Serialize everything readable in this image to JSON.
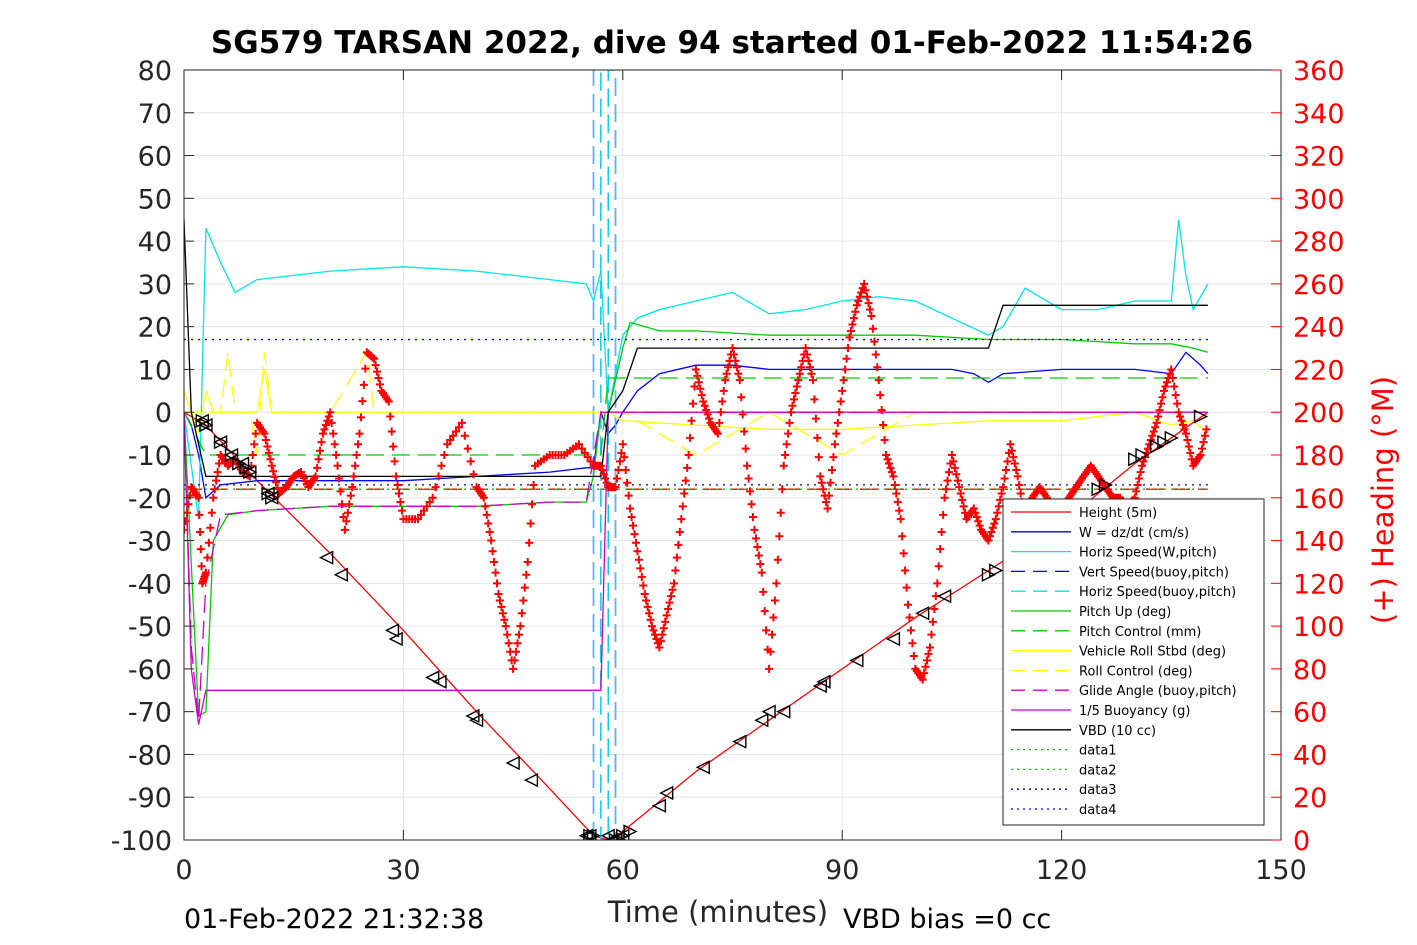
{
  "chart_data": {
    "type": "line",
    "title": "SG579 TARSAN 2022, dive 94 started 01-Feb-2022 11:54:26",
    "xlabel": "Time (minutes)",
    "ylabel": "",
    "y2label": "(+) Heading (°M)",
    "xlim": [
      0,
      150
    ],
    "ylim": [
      -100,
      80
    ],
    "y2lim": [
      0,
      360
    ],
    "xticks": [
      "0",
      "30",
      "60",
      "90",
      "120",
      "150"
    ],
    "yticks": [
      "80",
      "70",
      "60",
      "50",
      "40",
      "30",
      "20",
      "10",
      "0",
      "-10",
      "-20",
      "-30",
      "-40",
      "-50",
      "-60",
      "-70",
      "-80",
      "-90",
      "-100"
    ],
    "y2ticks": [
      "360",
      "340",
      "320",
      "300",
      "280",
      "260",
      "240",
      "220",
      "200",
      "180",
      "160",
      "140",
      "120",
      "100",
      "80",
      "60",
      "40",
      "20",
      "0"
    ],
    "grid": true,
    "legend_position": "lower-right",
    "footer_left": "01-Feb-2022 21:32:38",
    "footer_right": "VBD bias =0 cc",
    "colors": {
      "red": "#ff0000",
      "blue": "#0000ff",
      "cyan": "#00e5e5",
      "green": "#00cc00",
      "yellow": "#ffff00",
      "magenta": "#cc00cc",
      "black": "#000000"
    },
    "series": [
      {
        "name": "Height (5m)",
        "color": "#ff0000",
        "dash": "solid",
        "x": [
          0,
          3,
          10,
          20,
          30,
          40,
          50,
          56,
          58,
          60,
          70,
          80,
          90,
          100,
          110,
          120,
          130,
          140
        ],
        "y": [
          0,
          -3,
          -16,
          -33,
          -51,
          -70,
          -88,
          -99,
          -100,
          -98,
          -84,
          -72,
          -60,
          -48,
          -37,
          -26,
          -12,
          0
        ]
      },
      {
        "name": "W = dz/dt (cm/s)",
        "color": "#0000ff",
        "dash": "solid",
        "x": [
          0,
          1,
          2,
          3,
          5,
          10,
          20,
          30,
          40,
          50,
          55,
          56,
          57,
          58,
          59,
          60,
          62,
          65,
          70,
          75,
          80,
          90,
          100,
          105,
          108,
          110,
          112,
          120,
          130,
          135,
          137,
          139,
          140
        ],
        "y": [
          0,
          -3,
          -10,
          -20,
          -17,
          -16,
          -16,
          -16,
          -15,
          -14,
          -13,
          -13,
          0,
          -5,
          -3,
          0,
          5,
          9,
          11,
          11,
          10,
          10,
          10,
          10,
          9,
          7,
          9,
          10,
          10,
          9,
          14,
          11,
          9
        ]
      },
      {
        "name": "Horiz Speed(W,pitch)",
        "color": "#00e5e5",
        "dash": "solid",
        "x": [
          0,
          2,
          3,
          5,
          7,
          10,
          20,
          30,
          40,
          50,
          55,
          56,
          57,
          58,
          60,
          62,
          65,
          70,
          75,
          80,
          85,
          90,
          95,
          100,
          105,
          110,
          112,
          115,
          120,
          125,
          130,
          135,
          136,
          137,
          138,
          139,
          140
        ],
        "y": [
          0,
          -25,
          43,
          35,
          28,
          31,
          33,
          34,
          33,
          31,
          30,
          26,
          33,
          0,
          18,
          22,
          24,
          26,
          28,
          23,
          24,
          26,
          27,
          26,
          22,
          18,
          20,
          29,
          24,
          24,
          26,
          26,
          45,
          32,
          24,
          27,
          30
        ]
      },
      {
        "name": "Vert Speed(buoy,pitch)",
        "color": "#0000ff",
        "dash": "dash",
        "x": [
          56,
          56,
          57,
          57,
          58,
          58,
          59,
          59
        ],
        "y": [
          -100,
          80,
          80,
          -100,
          -100,
          80,
          80,
          -100
        ]
      },
      {
        "name": "Horiz Speed(buoy,pitch)",
        "color": "#00e5e5",
        "dash": "dash",
        "x": [
          56,
          56,
          57,
          57,
          58,
          58,
          59,
          59
        ],
        "y": [
          -100,
          80,
          80,
          -100,
          -100,
          80,
          80,
          -100
        ]
      },
      {
        "name": "Pitch Up (deg)",
        "color": "#00cc00",
        "dash": "solid",
        "x": [
          0,
          2,
          3,
          4,
          6,
          10,
          20,
          30,
          40,
          50,
          55,
          56,
          57,
          58,
          60,
          61,
          65,
          70,
          80,
          90,
          100,
          110,
          120,
          130,
          135,
          138,
          140
        ],
        "y": [
          0,
          -71,
          -70,
          -30,
          -24,
          -23,
          -22,
          -22,
          -22,
          -21,
          -21,
          -15,
          0,
          0,
          15,
          21,
          19,
          19,
          18,
          18,
          18,
          17,
          17,
          16,
          16,
          15,
          14
        ]
      },
      {
        "name": "Pitch Control (mm)",
        "color": "#00cc00",
        "dash": "dash",
        "x": [
          0,
          3,
          4,
          57,
          58,
          60,
          140
        ],
        "y": [
          0,
          -10,
          -10,
          -10,
          8,
          8,
          8
        ]
      },
      {
        "name": "Vehicle Roll Stbd (deg)",
        "color": "#ffff00",
        "dash": "solid",
        "x": [
          0,
          2,
          3,
          4,
          6,
          10,
          11,
          12,
          20,
          30,
          40,
          50,
          55,
          58,
          60,
          70,
          80,
          90,
          100,
          110,
          120,
          130,
          135,
          138,
          140
        ],
        "y": [
          5,
          -5,
          5,
          0,
          0,
          0,
          10,
          0,
          0,
          0,
          0,
          0,
          0,
          0,
          -2,
          -3,
          -4,
          -4,
          -3,
          -2,
          -2,
          0,
          -3,
          -2,
          -5
        ]
      },
      {
        "name": "Roll Control (deg)",
        "color": "#ffff00",
        "dash": "dash",
        "x": [
          0,
          5,
          6,
          7,
          9,
          10,
          11,
          12,
          20,
          25,
          26,
          30,
          40,
          55,
          60,
          70,
          80,
          90,
          100,
          110,
          120,
          130,
          140
        ],
        "y": [
          0,
          0,
          14,
          0,
          0,
          -10,
          14,
          0,
          0,
          14,
          0,
          0,
          0,
          0,
          0,
          -10,
          0,
          -10,
          0,
          0,
          0,
          0,
          0
        ]
      },
      {
        "name": "Glide Angle (buoy,pitch)",
        "color": "#cc00cc",
        "dash": "dash",
        "x": [
          0,
          1,
          2,
          3,
          5,
          10,
          20,
          30,
          40,
          50,
          55,
          57,
          58,
          60,
          70,
          80,
          90,
          100,
          110,
          120,
          130,
          140
        ],
        "y": [
          0,
          -55,
          -72,
          -40,
          -24,
          -23,
          -22,
          -22,
          -22,
          -21,
          -21,
          0,
          0,
          0,
          0,
          0,
          0,
          0,
          0,
          0,
          0,
          0
        ]
      },
      {
        "name": "1/5 Buoyancy (g)",
        "color": "#cc00cc",
        "dash": "solid",
        "x": [
          0,
          1,
          2,
          3,
          57,
          58,
          140
        ],
        "y": [
          0,
          -60,
          -73,
          -65,
          -65,
          0,
          0
        ]
      },
      {
        "name": "VBD (10 cc)",
        "color": "#000000",
        "dash": "solid",
        "x": [
          0,
          1,
          3,
          56,
          57,
          58,
          60,
          62,
          63,
          110,
          112,
          140
        ],
        "y": [
          45,
          0,
          -15,
          -15,
          -15,
          0,
          5,
          15,
          15,
          15,
          25,
          25
        ]
      },
      {
        "name": "data1",
        "color": "#00cc00",
        "dash": "dot",
        "x": [
          0,
          140
        ],
        "y": [
          -18,
          -18
        ]
      },
      {
        "name": "data2",
        "color": "#00cc00",
        "dash": "dot",
        "x": [
          0,
          140
        ],
        "y": [
          17,
          17
        ]
      },
      {
        "name": "data3",
        "color": "#000080",
        "dash": "dot",
        "x": [
          0,
          140
        ],
        "y": [
          -17,
          -17
        ]
      },
      {
        "name": "data4",
        "color": "#0000ff",
        "dash": "dot",
        "x": [
          0,
          140
        ],
        "y": [
          17,
          17
        ]
      }
    ],
    "extra_lines": [
      {
        "color": "#ff0000",
        "dash": "dash",
        "x": [
          0,
          140
        ],
        "y": [
          -18,
          -18
        ]
      }
    ],
    "heading": {
      "color": "#ff0000",
      "x": [
        0,
        1,
        2,
        2.5,
        3,
        4,
        5,
        6,
        7,
        8,
        9,
        10,
        11,
        12,
        13,
        14,
        15,
        16,
        17,
        18,
        19,
        20,
        21,
        22,
        23,
        24,
        25,
        26,
        27,
        28,
        29,
        30,
        32,
        34,
        36,
        38,
        40,
        41,
        42,
        43,
        44,
        45,
        46,
        47,
        48,
        50,
        52,
        54,
        56,
        57,
        58,
        59,
        60,
        61,
        62,
        63,
        64,
        65,
        66,
        67,
        68,
        69,
        70,
        71,
        72,
        73,
        74,
        75,
        76,
        77,
        78,
        79,
        80,
        81,
        82,
        83,
        84,
        85,
        86,
        87,
        88,
        89,
        90,
        91,
        92,
        93,
        94,
        95,
        96,
        97,
        98,
        99,
        100,
        101,
        102,
        103,
        104,
        105,
        106,
        107,
        108,
        109,
        110,
        111,
        112,
        113,
        114,
        115,
        116,
        117,
        118,
        119,
        120,
        121,
        122,
        123,
        124,
        125,
        126,
        127,
        128,
        129,
        130,
        131,
        132,
        133,
        134,
        135,
        136,
        137,
        138,
        139,
        140
      ],
      "y": [
        145,
        165,
        160,
        120,
        125,
        160,
        180,
        175,
        178,
        172,
        170,
        195,
        190,
        175,
        162,
        165,
        170,
        172,
        165,
        170,
        190,
        200,
        175,
        145,
        165,
        190,
        228,
        225,
        210,
        205,
        170,
        150,
        150,
        160,
        185,
        195,
        165,
        160,
        140,
        115,
        100,
        80,
        100,
        130,
        175,
        180,
        180,
        185,
        175,
        175,
        165,
        165,
        185,
        155,
        135,
        115,
        100,
        90,
        105,
        120,
        150,
        180,
        220,
        205,
        195,
        190,
        215,
        230,
        215,
        175,
        145,
        125,
        80,
        120,
        175,
        200,
        215,
        230,
        215,
        170,
        155,
        185,
        210,
        235,
        250,
        260,
        245,
        215,
        180,
        170,
        150,
        110,
        80,
        75,
        90,
        120,
        160,
        180,
        165,
        150,
        155,
        145,
        140,
        150,
        165,
        185,
        170,
        150,
        160,
        165,
        160,
        150,
        155,
        160,
        165,
        170,
        175,
        170,
        165,
        160,
        160,
        155,
        160,
        175,
        185,
        195,
        210,
        220,
        200,
        190,
        175,
        180,
        195
      ]
    },
    "markers": {
      "color": "#000000",
      "left": {
        "x": [
          2.5,
          3,
          5,
          6.5,
          8,
          9,
          11.5,
          12,
          19.5,
          21.5,
          28.5,
          29,
          34,
          35,
          39.5,
          40,
          45,
          47.5,
          55,
          55.5,
          58,
          58.5,
          59,
          60,
          65,
          66,
          71,
          76,
          79,
          80,
          82,
          87,
          87.5,
          92,
          97,
          101,
          104
        ],
        "y": [
          -2,
          -3,
          -7,
          -10,
          -12,
          -14,
          -19,
          -20,
          -34,
          -38,
          -51,
          -53,
          -62,
          -63,
          -71,
          -72,
          -82,
          -86,
          -99,
          -99,
          -99,
          -100,
          -100,
          -99,
          -92,
          -89,
          -83,
          -77,
          -72,
          -70,
          -70,
          -64,
          -63,
          -58,
          -53,
          -47,
          -43
        ]
      },
      "right": {
        "x": [
          2.5,
          3,
          5,
          6.5,
          7.5,
          8.5,
          9,
          11.5,
          12,
          55.5,
          56,
          59,
          60,
          61,
          110,
          111,
          115,
          125,
          126,
          130,
          131,
          133,
          134,
          135,
          139
        ],
        "y": [
          -2,
          -3,
          -7,
          -10,
          -12,
          -13,
          -14,
          -19,
          -20,
          -99,
          -99,
          -100,
          -99,
          -98,
          -38,
          -37,
          -32,
          -18,
          -17,
          -11,
          -10,
          -8,
          -7,
          -6,
          -1
        ]
      }
    }
  }
}
